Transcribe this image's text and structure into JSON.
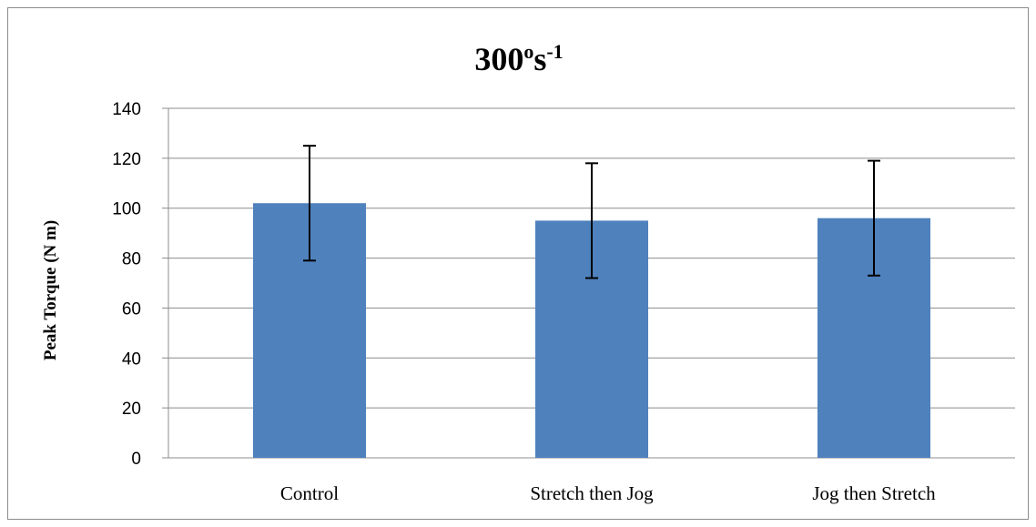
{
  "chart_data": {
    "type": "bar",
    "title": "300",
    "title_superscript_degree": "o",
    "title_unit": "s",
    "title_superscript_exp": "-1",
    "xlabel": "",
    "ylabel": "Peak Torque (N m)",
    "ylim": [
      0,
      140
    ],
    "yticks": [
      0,
      20,
      40,
      60,
      80,
      100,
      120,
      140
    ],
    "ytick_labels": [
      "0",
      "20",
      "40",
      "60",
      "80",
      "100",
      "120",
      "140"
    ],
    "categories": [
      "Control",
      "Stretch then Jog",
      "Jog then Stretch"
    ],
    "values": [
      102,
      95,
      96
    ],
    "error_bars": [
      23,
      23,
      23
    ],
    "bar_color": "#4f81bd",
    "grid": true,
    "legend": "none"
  }
}
